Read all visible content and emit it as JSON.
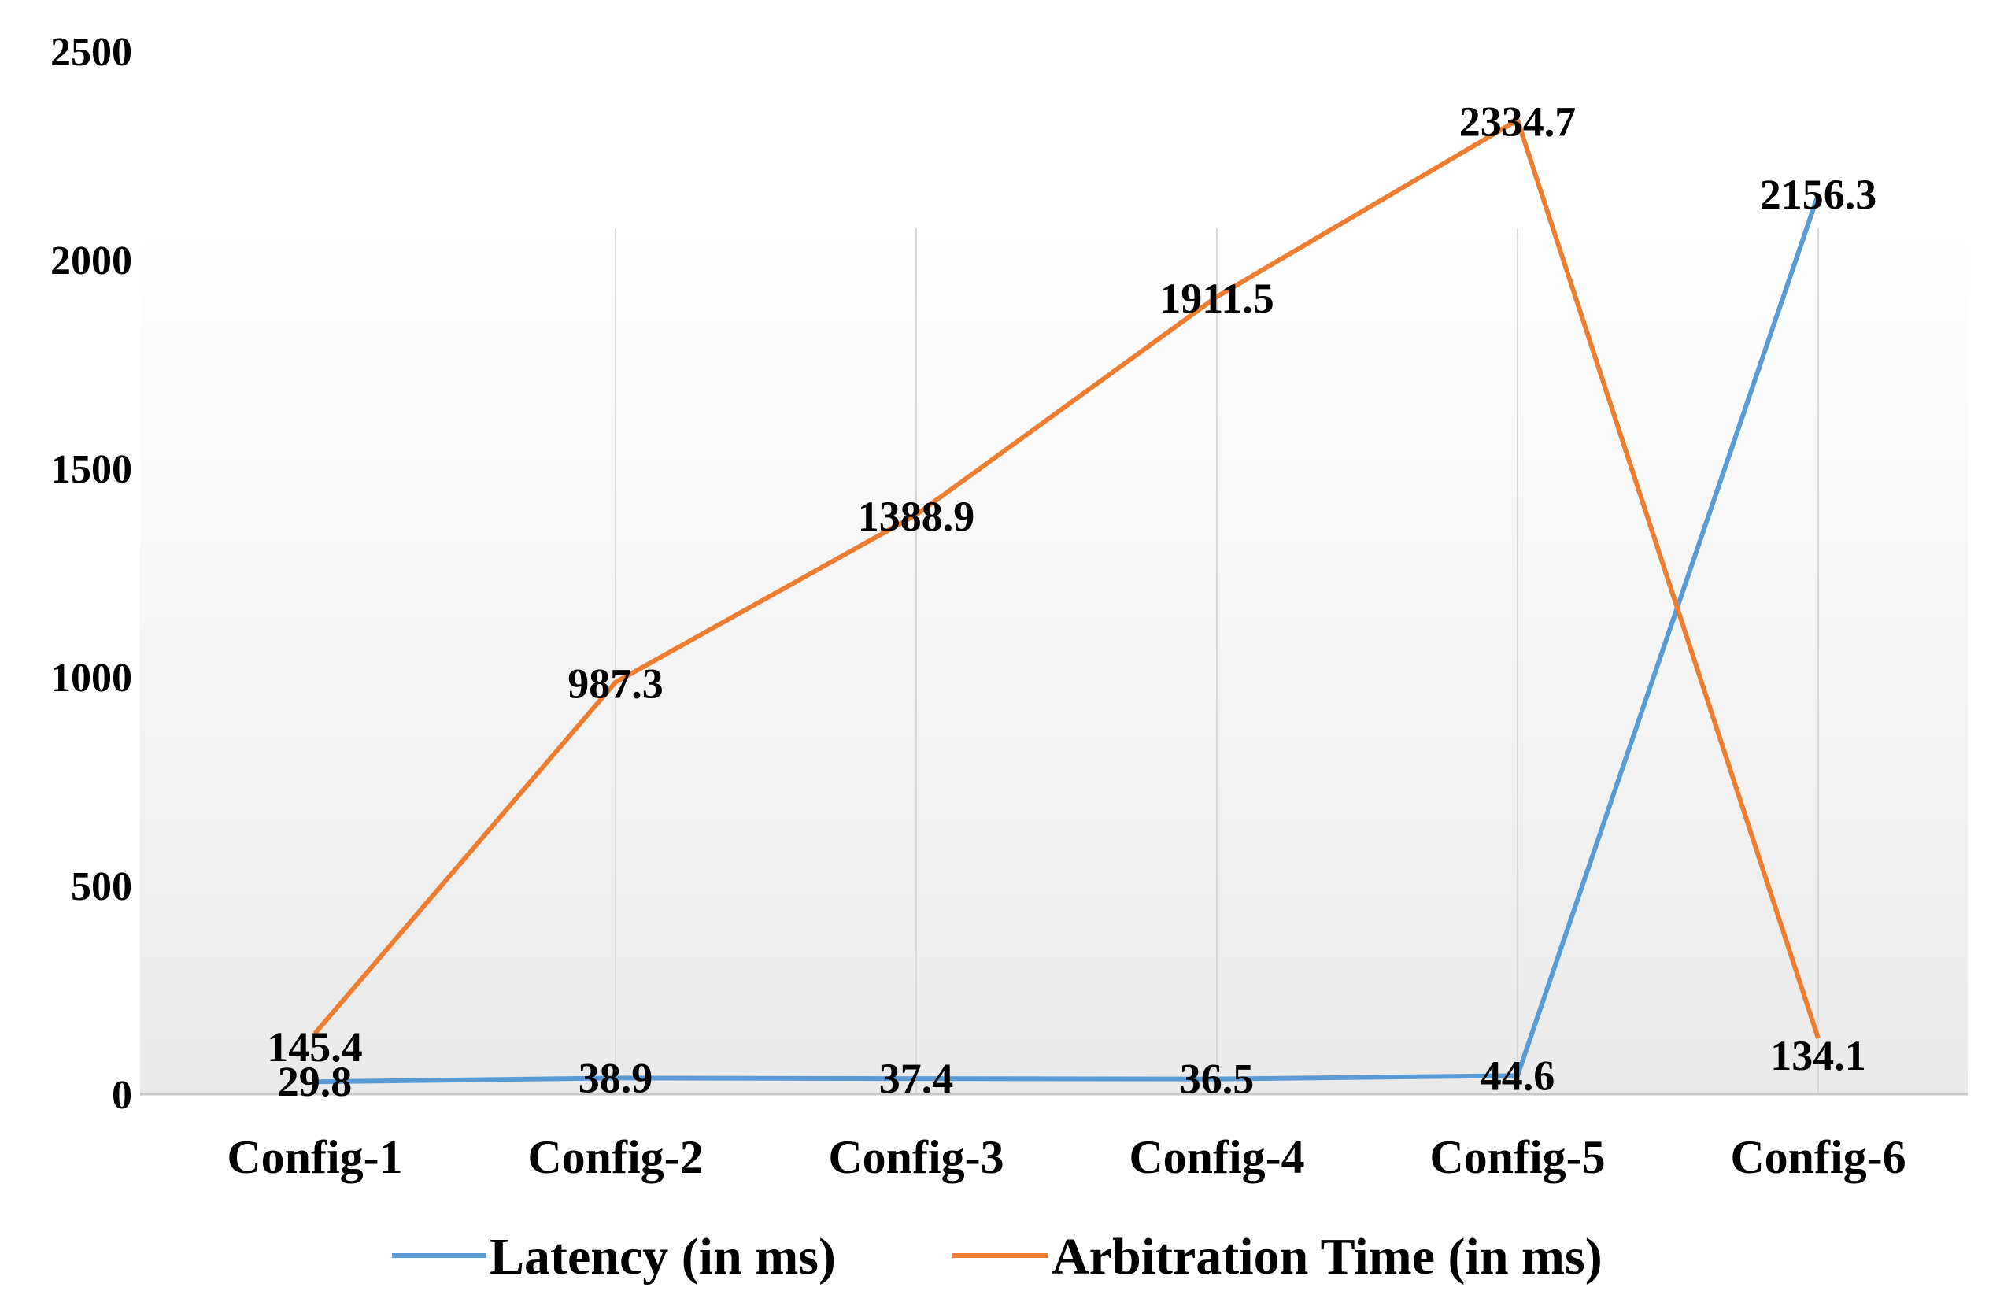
{
  "chart_data": {
    "type": "line",
    "categories": [
      "Config-1",
      "Config-2",
      "Config-3",
      "Config-4",
      "Config-5",
      "Config-6"
    ],
    "series": [
      {
        "name": "Latency (in ms)",
        "color": "#5b9bd5",
        "values": [
          29.8,
          38.9,
          37.4,
          36.5,
          44.6,
          2156.3
        ],
        "labels": [
          "29.8",
          "38.9",
          "37.4",
          "36.5",
          "44.6",
          "2156.3"
        ]
      },
      {
        "name": "Arbitration Time (in ms)",
        "color": "#ed7d31",
        "values": [
          145.4,
          987.3,
          1388.9,
          1911.5,
          2334.7,
          134.1
        ],
        "labels": [
          "145.4",
          "987.3",
          "1388.9",
          "1911.5",
          "2334.7",
          "134.1"
        ]
      }
    ],
    "y_ticks": [
      "0",
      "500",
      "1000",
      "1500",
      "2000",
      "2500"
    ],
    "ylim": [
      0,
      2500
    ],
    "title": "",
    "xlabel": "",
    "ylabel": "",
    "grid": "vertical",
    "legend": "bottom"
  }
}
